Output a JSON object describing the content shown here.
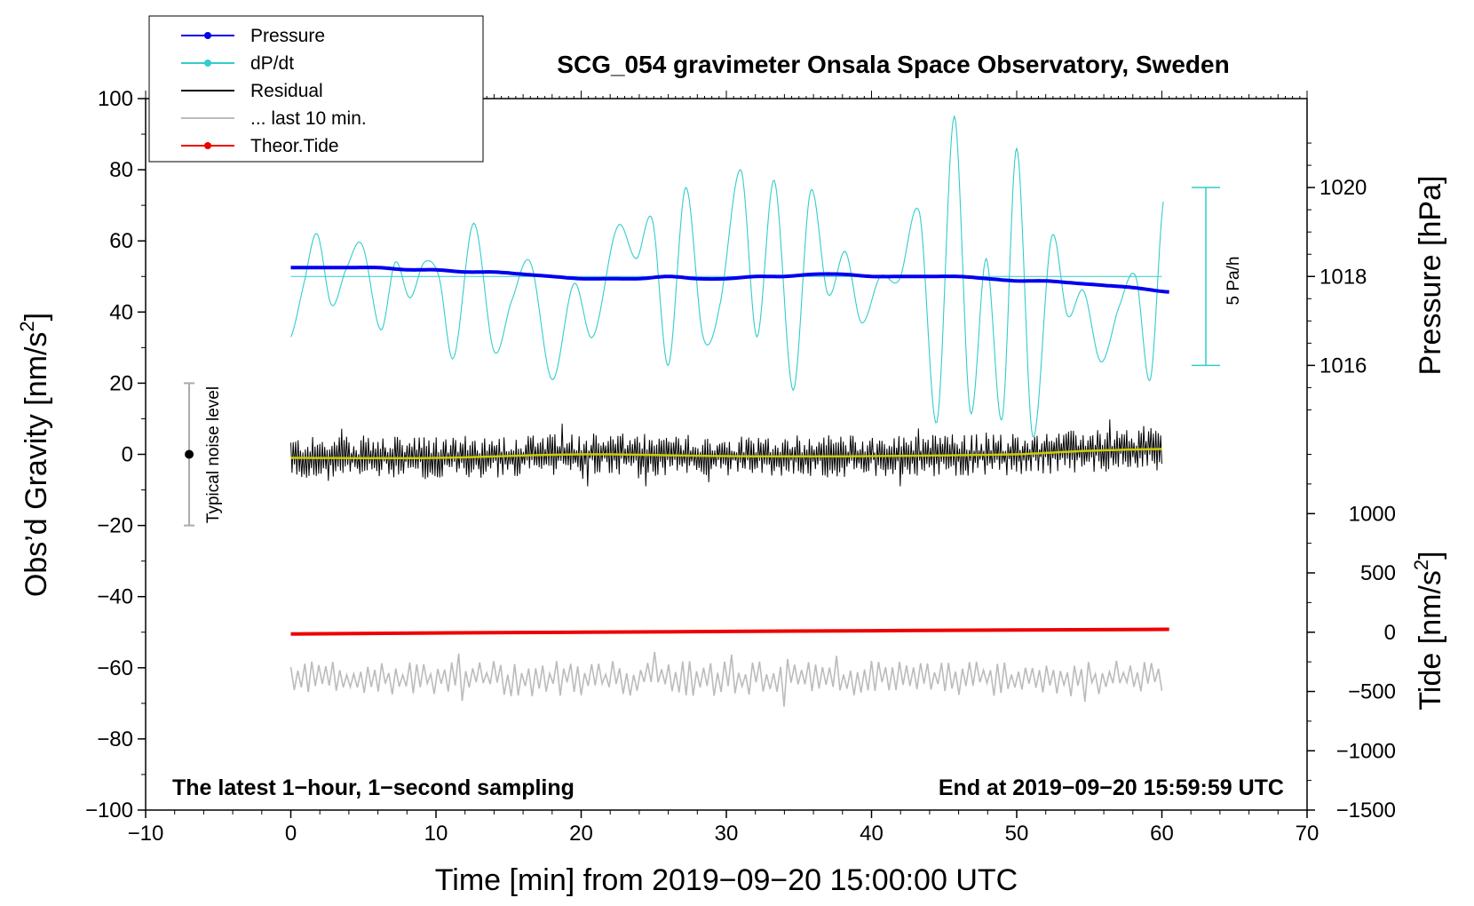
{
  "chart_data": {
    "type": "line",
    "title": "SCG_054 gravimeter Onsala Space Observatory, Sweden",
    "xlabel": "Time [min] from 2019−09−20 15:00:00 UTC",
    "ylabel_left": "Obs’d Gravity [nm/s",
    "ylabel_left_sup": "2",
    "ylabel_left_end": "]",
    "ylabel_right_top": "Pressure [hPa]",
    "ylabel_right_bottom": "Tide [nm/s",
    "ylabel_right_bottom_sup": "2",
    "ylabel_right_bottom_end": "]",
    "xlim": [
      -10,
      70
    ],
    "ylim_left": [
      -100,
      100
    ],
    "x_ticks": [
      {
        "v": -10,
        "label": "−10"
      },
      {
        "v": 0,
        "label": "0"
      },
      {
        "v": 10,
        "label": "10"
      },
      {
        "v": 20,
        "label": "20"
      },
      {
        "v": 30,
        "label": "30"
      },
      {
        "v": 40,
        "label": "40"
      },
      {
        "v": 50,
        "label": "50"
      },
      {
        "v": 60,
        "label": "60"
      },
      {
        "v": 70,
        "label": "70"
      }
    ],
    "y_ticks_left": [
      {
        "v": 100,
        "label": "100"
      },
      {
        "v": 80,
        "label": "80"
      },
      {
        "v": 60,
        "label": "60"
      },
      {
        "v": 40,
        "label": "40"
      },
      {
        "v": 20,
        "label": "20"
      },
      {
        "v": 0,
        "label": "0"
      },
      {
        "v": -20,
        "label": "−20"
      },
      {
        "v": -40,
        "label": "−40"
      },
      {
        "v": -60,
        "label": "−60"
      },
      {
        "v": -80,
        "label": "−80"
      },
      {
        "v": -100,
        "label": "−100"
      }
    ],
    "pressure_axis": {
      "ticks": [
        {
          "v": 1020,
          "label": "1020"
        },
        {
          "v": 1018,
          "label": "1018"
        },
        {
          "v": 1016,
          "label": "1016"
        }
      ],
      "anchor": {
        "hpa_a": 1020,
        "grav_a": 75.0,
        "hpa_b": 1016,
        "grav_b": 25.0
      }
    },
    "tide_axis": {
      "ticks": [
        {
          "v": 1000,
          "label": "1000"
        },
        {
          "v": 500,
          "label": "500"
        },
        {
          "v": 0,
          "label": "0"
        },
        {
          "v": -500,
          "label": "−500"
        },
        {
          "v": -1000,
          "label": "−1000"
        },
        {
          "v": -1500,
          "label": "−1500"
        }
      ],
      "anchor": {
        "tide_a": 0,
        "grav_a": -50.0,
        "tide_b": -1500,
        "grav_b": -100.0
      }
    },
    "series": [
      {
        "name": "Pressure",
        "unit": "hPa",
        "color": "#0000ee",
        "x": [
          0,
          2,
          4,
          6,
          8,
          10,
          12,
          14,
          16,
          18,
          20,
          22,
          24,
          26,
          28,
          30,
          32,
          34,
          36,
          38,
          40,
          42,
          44,
          46,
          48,
          50,
          52,
          54,
          56,
          58,
          60.5
        ],
        "values": [
          1018.2,
          1018.2,
          1018.2,
          1018.2,
          1018.15,
          1018.15,
          1018.1,
          1018.1,
          1018.05,
          1018.0,
          1017.95,
          1017.95,
          1017.95,
          1018.0,
          1017.95,
          1017.95,
          1018.0,
          1018.0,
          1018.05,
          1018.05,
          1018.0,
          1018.0,
          1018.0,
          1018.0,
          1017.95,
          1017.9,
          1017.9,
          1017.85,
          1017.8,
          1017.75,
          1017.65
        ]
      },
      {
        "name": "dP/dt",
        "unit": "nm/s2 (scaled)",
        "color": "#33cccc",
        "baseline": 50,
        "x": [
          0,
          0.9,
          1.8,
          2.8,
          3.8,
          4.9,
          6.2,
          7.2,
          8.2,
          9.2,
          10.2,
          11.2,
          12.6,
          14,
          15.2,
          16.5,
          18,
          19.5,
          20.8,
          22.5,
          23.8,
          24.9,
          26,
          27.2,
          28.4,
          29.5,
          31,
          32.1,
          33.3,
          34.6,
          35.8,
          37,
          38.2,
          39.3,
          40.6,
          41.9,
          43.3,
          44.5,
          45.7,
          46.8,
          47.9,
          49,
          50,
          51.1,
          52.4,
          53.5,
          54.6,
          55.8,
          57.1,
          58.2,
          59.2,
          60.1
        ],
        "values": [
          33,
          48,
          62,
          42,
          52,
          59,
          35,
          54,
          44,
          54,
          50,
          27,
          65,
          29,
          43,
          54,
          21,
          48,
          33,
          64,
          55,
          66,
          25,
          75,
          33,
          41,
          80,
          33,
          77,
          18,
          74,
          45,
          57,
          37,
          50,
          49,
          68,
          9,
          95,
          12,
          55,
          10,
          86,
          5,
          61,
          39,
          46,
          26,
          42,
          50,
          21,
          71
        ]
      },
      {
        "name": "Residual",
        "unit": "nm/s2",
        "color": "#000000",
        "x_range": [
          0,
          60
        ],
        "points": 720,
        "amplitude_nm_s2": 5,
        "peak_max_nm_s2": 13,
        "peak_min_nm_s2": -9,
        "smoothed_color": "#cccc00",
        "smoothed_x": [
          0,
          10,
          20,
          30,
          40,
          50,
          55,
          60
        ],
        "smoothed_values": [
          -1,
          -1,
          0,
          -0.5,
          -0.5,
          0,
          1,
          1.5
        ]
      },
      {
        "name": "... last 10 min.",
        "unit": "nm/s2",
        "color": "#bbbbbb",
        "x_range": [
          0,
          60
        ],
        "points": 250,
        "baseline": -63,
        "amplitude_nm_s2": 4,
        "peak_max_nm_s2": -53,
        "peak_min_nm_s2": -71
      },
      {
        "name": "Theor.Tide",
        "unit": "nm/s2",
        "color": "#ee0000",
        "x": [
          0,
          10,
          20,
          30,
          40,
          50,
          60.5
        ],
        "values": [
          -50.5,
          -50.2,
          -50.0,
          -49.8,
          -49.6,
          -49.4,
          -49.2
        ]
      }
    ],
    "dpdt_scale_bar": {
      "label": "5 Pa/h",
      "top_nm_s2": 75,
      "bottom_nm_s2": 25
    },
    "noise_bar": {
      "label": "Typical noise level",
      "x": -7,
      "center": 0,
      "top": 20,
      "bottom": -20
    },
    "note_left": "The latest 1−hour, 1−second sampling",
    "note_right": "End at 2019−09−20 15:59:59 UTC",
    "legend": {
      "placement": "top-left",
      "entries": [
        {
          "label": "Pressure",
          "color": "#0000ee",
          "marker": true
        },
        {
          "label": "dP/dt",
          "color": "#33cccc",
          "marker": true
        },
        {
          "label": "Residual",
          "color": "#000000",
          "marker": false
        },
        {
          "label": "... last 10 min.",
          "color": "#bbbbbb",
          "marker": false
        },
        {
          "label": "Theor.Tide",
          "color": "#ee0000",
          "marker": true
        }
      ]
    }
  }
}
